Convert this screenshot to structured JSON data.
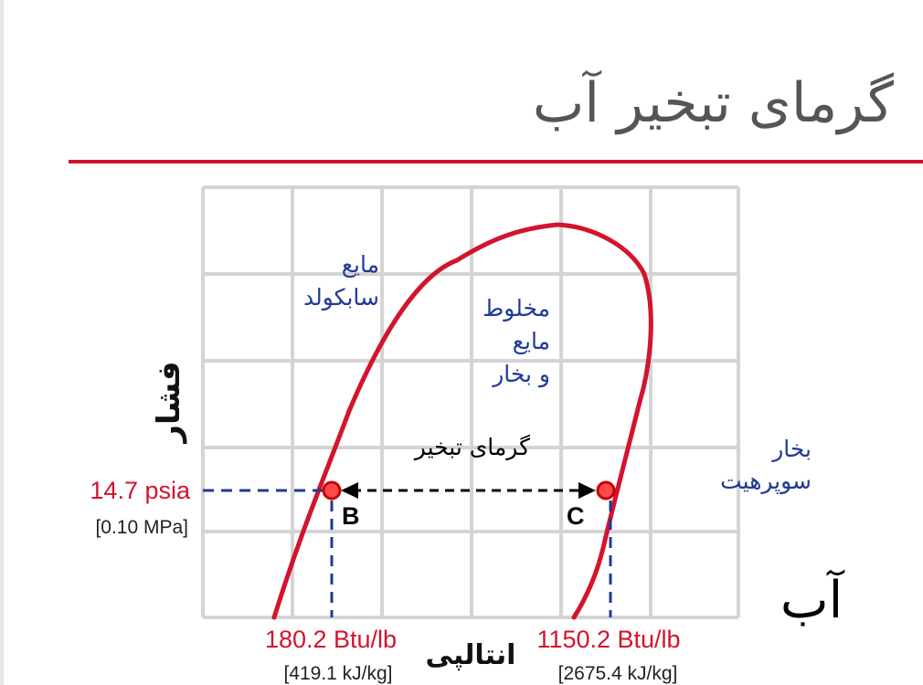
{
  "title": "گرمای تبخیر آب",
  "substance": "آب",
  "axes": {
    "y_label": "فشار",
    "x_label": "انتالپی"
  },
  "regions": {
    "subcooled": [
      "مایع",
      "سابکولد"
    ],
    "mixture": [
      "مخلوط",
      "مایع",
      "و بخار"
    ],
    "superheated": [
      "بخار",
      "سوپرهیت"
    ]
  },
  "latent_heat_label": "گرمای تبخیر",
  "pressure": {
    "value": "14.7 psia",
    "si": "[0.10 MPa]"
  },
  "points": [
    {
      "name": "B",
      "enthalpy": "180.2 Btu/lb",
      "enthalpy_si": "[419.1 kJ/kg]"
    },
    {
      "name": "C",
      "enthalpy": "1150.2 Btu/lb",
      "enthalpy_si": "[2675.4 kJ/kg]"
    }
  ],
  "colors": {
    "accent": "#d2142c",
    "region_text": "#1f3a93",
    "grid": "#d4d4d4",
    "title": "#555555"
  }
}
